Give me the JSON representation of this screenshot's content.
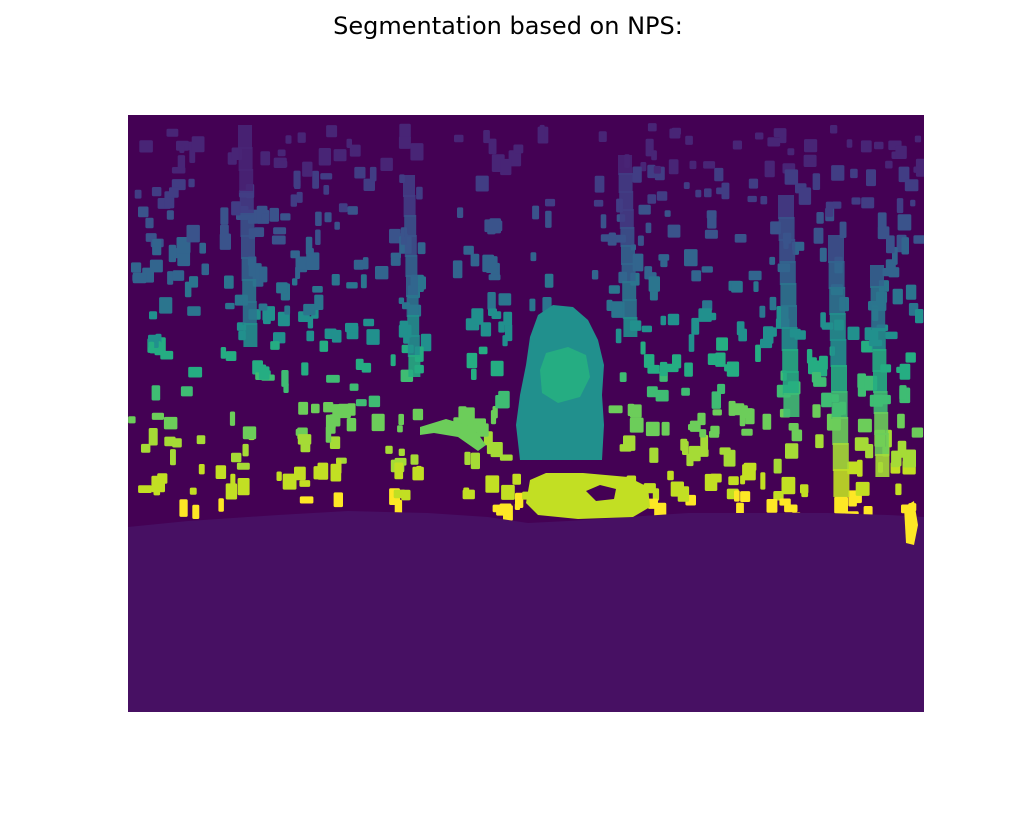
{
  "figure": {
    "title": "Segmentation based on NPS:"
  },
  "colors": {
    "background": "#440154",
    "ground": "#471063",
    "deep_purple": "#482576",
    "indigo": "#413d84",
    "slate_blue": "#3a538b",
    "steel_blue": "#32658e",
    "blue_teal": "#2b758e",
    "teal": "#21908d",
    "sea_green": "#25ad82",
    "green": "#3fbc73",
    "light_green": "#6ccd5a",
    "lime": "#a5db36",
    "chartreuse": "#c2df23",
    "yellow": "#fde725"
  }
}
